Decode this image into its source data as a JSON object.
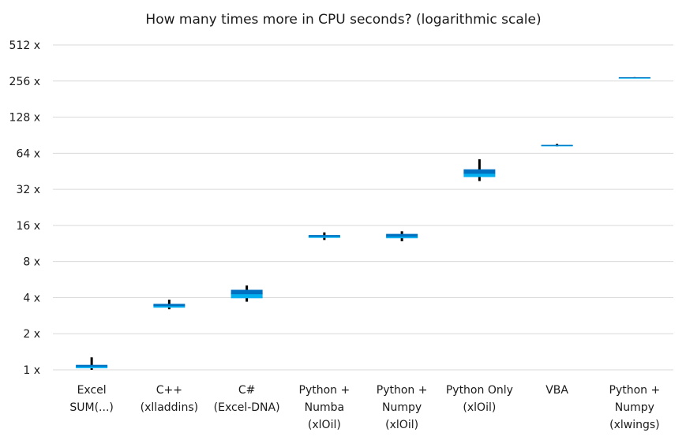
{
  "chart_data": {
    "type": "boxplot",
    "title": "How many times more in CPU seconds? (logarithmic scale)",
    "y_scale": "log2",
    "ylim": [
      1,
      512
    ],
    "yticks": [
      1,
      2,
      4,
      8,
      16,
      32,
      64,
      128,
      256,
      512
    ],
    "ytick_labels": [
      "1 x",
      "2 x",
      "4 x",
      "8 x",
      "16 x",
      "32 x",
      "64 x",
      "128 x",
      "256 x",
      "512 x"
    ],
    "grid": true,
    "categories": [
      {
        "label": [
          "Excel",
          "SUM(...)"
        ],
        "whisker_low": 1.0,
        "q1": 1.03,
        "median": 1.07,
        "q3": 1.1,
        "whisker_high": 1.27
      },
      {
        "label": [
          "C++",
          "(xlladdins)"
        ],
        "whisker_low": 3.2,
        "q1": 3.3,
        "median": 3.42,
        "q3": 3.55,
        "whisker_high": 3.85
      },
      {
        "label": [
          "C#",
          "(Excel-DNA)"
        ],
        "whisker_low": 3.7,
        "q1": 3.95,
        "median": 4.3,
        "q3": 4.65,
        "whisker_high": 5.05
      },
      {
        "label": [
          "Python +",
          "Numba",
          "(xlOil)"
        ],
        "whisker_low": 12.1,
        "q1": 12.6,
        "median": 13.0,
        "q3": 13.3,
        "whisker_high": 14.0
      },
      {
        "label": [
          "Python +",
          "Numpy",
          "(xlOil)"
        ],
        "whisker_low": 11.8,
        "q1": 12.5,
        "median": 13.0,
        "q3": 13.6,
        "whisker_high": 14.3
      },
      {
        "label": [
          "Python Only",
          "(xlOil)"
        ],
        "whisker_low": 37.5,
        "q1": 40.5,
        "median": 43.5,
        "q3": 47.0,
        "whisker_high": 57.0
      },
      {
        "label": [
          "VBA"
        ],
        "whisker_low": 73.0,
        "q1": 74.0,
        "median": 74.5,
        "q3": 75.0,
        "whisker_high": 76.5
      },
      {
        "label": [
          "Python +",
          "Numpy",
          "(xlwings)"
        ],
        "whisker_low": 270,
        "q1": 272,
        "median": 273,
        "q3": 274,
        "whisker_high": 276
      }
    ]
  },
  "colors": {
    "box_dark": "#0070c0",
    "box_light": "#00b0f0",
    "whisker": "#000000",
    "grid": "#d9d9d9",
    "text": "#1a1a1a"
  }
}
